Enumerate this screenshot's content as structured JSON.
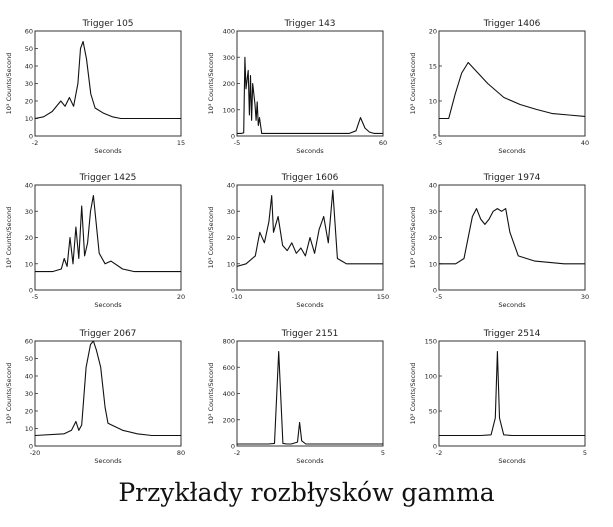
{
  "caption": "Przykłady rozbłysków gamma",
  "chart_data": [
    {
      "type": "line",
      "title": "Trigger 105",
      "xlabel": "Seconds",
      "ylabel": "10³ Counts/Second",
      "xlim": [
        -2,
        15
      ],
      "ylim": [
        0,
        60
      ],
      "xticks": [
        "-2",
        "15"
      ],
      "yticks": [
        "0",
        "10",
        "20",
        "30",
        "40",
        "50",
        "60"
      ],
      "series": [
        {
          "x": [
            -2,
            -1,
            0,
            1,
            1.5,
            2,
            2.5,
            3,
            3.3,
            3.6,
            4,
            4.5,
            5,
            6,
            7,
            8,
            9,
            10,
            12,
            15
          ],
          "y": [
            10,
            11,
            14,
            20,
            17,
            22,
            17,
            30,
            50,
            54,
            44,
            24,
            16,
            13,
            11,
            10,
            10,
            10,
            10,
            10
          ]
        }
      ]
    },
    {
      "type": "line",
      "title": "Trigger 143",
      "xlabel": "Seconds",
      "ylabel": "10³ Counts/Second",
      "xlim": [
        -5,
        60
      ],
      "ylim": [
        0,
        400
      ],
      "xticks": [
        "-5",
        "60"
      ],
      "yticks": [
        "0",
        "100",
        "200",
        "300",
        "400"
      ],
      "series": [
        {
          "x": [
            -5,
            -3,
            -2,
            -1.5,
            -1,
            0,
            0.5,
            1,
            1.5,
            2,
            3,
            3.5,
            4,
            4.5,
            5,
            6,
            8,
            15,
            30,
            45,
            48,
            50,
            52,
            54,
            56,
            60
          ],
          "y": [
            10,
            10,
            12,
            300,
            180,
            250,
            80,
            230,
            60,
            200,
            120,
            60,
            130,
            40,
            70,
            10,
            10,
            10,
            10,
            10,
            20,
            70,
            30,
            15,
            10,
            10
          ]
        }
      ]
    },
    {
      "type": "line",
      "title": "Trigger 1406",
      "xlabel": "Seconds",
      "ylabel": "10³ Counts/Second",
      "xlim": [
        -5,
        40
      ],
      "ylim": [
        5,
        20
      ],
      "xticks": [
        "-5",
        "40"
      ],
      "yticks": [
        "5",
        "10",
        "15",
        "20"
      ],
      "series": [
        {
          "x": [
            -5,
            -2,
            0,
            2,
            4,
            6,
            8,
            10,
            15,
            20,
            25,
            30,
            35,
            40
          ],
          "y": [
            7.5,
            7.5,
            11,
            14,
            15.5,
            14.5,
            13.5,
            12.5,
            10.5,
            9.5,
            8.8,
            8.2,
            8,
            7.8
          ]
        }
      ]
    },
    {
      "type": "line",
      "title": "Trigger 1425",
      "xlabel": "Seconds",
      "ylabel": "10³ Counts/Second",
      "xlim": [
        -5,
        20
      ],
      "ylim": [
        0,
        40
      ],
      "xticks": [
        "-5",
        "20"
      ],
      "yticks": [
        "0",
        "10",
        "20",
        "30",
        "40"
      ],
      "series": [
        {
          "x": [
            -5,
            -2,
            -0.5,
            0,
            0.5,
            1,
            1.5,
            2,
            2.5,
            3,
            3.5,
            4,
            4.5,
            5,
            6,
            7,
            8,
            10,
            12,
            15,
            20
          ],
          "y": [
            7,
            7,
            8,
            12,
            9,
            20,
            10,
            24,
            12,
            32,
            13,
            18,
            30,
            36,
            14,
            10,
            11,
            8,
            7,
            7,
            7
          ]
        }
      ]
    },
    {
      "type": "line",
      "title": "Trigger 1606",
      "xlabel": "Seconds",
      "ylabel": "10³ Counts/Second",
      "xlim": [
        -10,
        150
      ],
      "ylim": [
        0,
        40
      ],
      "xticks": [
        "-10",
        "150"
      ],
      "yticks": [
        "0",
        "10",
        "20",
        "30",
        "40"
      ],
      "series": [
        {
          "x": [
            -10,
            0,
            10,
            15,
            20,
            25,
            28,
            30,
            35,
            40,
            45,
            50,
            55,
            60,
            65,
            70,
            75,
            80,
            85,
            90,
            95,
            100,
            105,
            110,
            115,
            150
          ],
          "y": [
            9,
            10,
            13,
            22,
            18,
            26,
            36,
            22,
            28,
            17,
            15,
            18,
            14,
            16,
            13,
            20,
            14,
            23,
            28,
            18,
            38,
            12,
            11,
            10,
            10,
            10
          ]
        }
      ]
    },
    {
      "type": "line",
      "title": "Trigger 1974",
      "xlabel": "Seconds",
      "ylabel": "10³ Counts/Second",
      "xlim": [
        -5,
        30
      ],
      "ylim": [
        0,
        40
      ],
      "xticks": [
        "-5",
        "30"
      ],
      "yticks": [
        "0",
        "10",
        "20",
        "30",
        "40"
      ],
      "series": [
        {
          "x": [
            -5,
            -1,
            1,
            2,
            3,
            4,
            5,
            6,
            7,
            8,
            9,
            10,
            11,
            12,
            14,
            18,
            25,
            30
          ],
          "y": [
            10,
            10,
            12,
            20,
            28,
            31,
            27,
            25,
            27,
            30,
            31,
            30,
            31,
            22,
            13,
            11,
            10,
            10
          ]
        }
      ]
    },
    {
      "type": "line",
      "title": "Trigger 2067",
      "xlabel": "Seconds",
      "ylabel": "10³ Counts/Second",
      "xlim": [
        -20,
        80
      ],
      "ylim": [
        0,
        60
      ],
      "xticks": [
        "-20",
        "80"
      ],
      "yticks": [
        "0",
        "10",
        "20",
        "30",
        "40",
        "50",
        "60"
      ],
      "series": [
        {
          "x": [
            -20,
            0,
            5,
            8,
            10,
            12,
            15,
            18,
            20,
            22,
            25,
            28,
            30,
            35,
            40,
            50,
            60,
            80
          ],
          "y": [
            6,
            7,
            9,
            14,
            9,
            12,
            45,
            58,
            60,
            55,
            45,
            22,
            13,
            11,
            9,
            7,
            6,
            6
          ]
        }
      ]
    },
    {
      "type": "line",
      "title": "Trigger 2151",
      "xlabel": "Seconds",
      "ylabel": "10³ Counts/Second",
      "xlim": [
        -2,
        5
      ],
      "ylim": [
        0,
        800
      ],
      "xticks": [
        "-2",
        "5"
      ],
      "yticks": [
        "0",
        "200",
        "400",
        "600",
        "800"
      ],
      "series": [
        {
          "x": [
            -2,
            -0.5,
            -0.2,
            0,
            0.2,
            0.4,
            0.6,
            0.9,
            1,
            1.1,
            1.3,
            1.6,
            5
          ],
          "y": [
            15,
            15,
            20,
            720,
            20,
            15,
            15,
            30,
            180,
            40,
            15,
            15,
            15
          ]
        }
      ]
    },
    {
      "type": "line",
      "title": "Trigger 2514",
      "xlabel": "Seconds",
      "ylabel": "10³ Counts/Second",
      "xlim": [
        -2,
        5
      ],
      "ylim": [
        0,
        150
      ],
      "xticks": [
        "-2",
        "5"
      ],
      "yticks": [
        "0",
        "50",
        "100",
        "150"
      ],
      "series": [
        {
          "x": [
            -2,
            0,
            0.5,
            0.7,
            0.8,
            0.9,
            1.1,
            1.5,
            3,
            5
          ],
          "y": [
            15,
            15,
            16,
            40,
            135,
            40,
            16,
            15,
            15,
            15
          ]
        }
      ]
    }
  ]
}
